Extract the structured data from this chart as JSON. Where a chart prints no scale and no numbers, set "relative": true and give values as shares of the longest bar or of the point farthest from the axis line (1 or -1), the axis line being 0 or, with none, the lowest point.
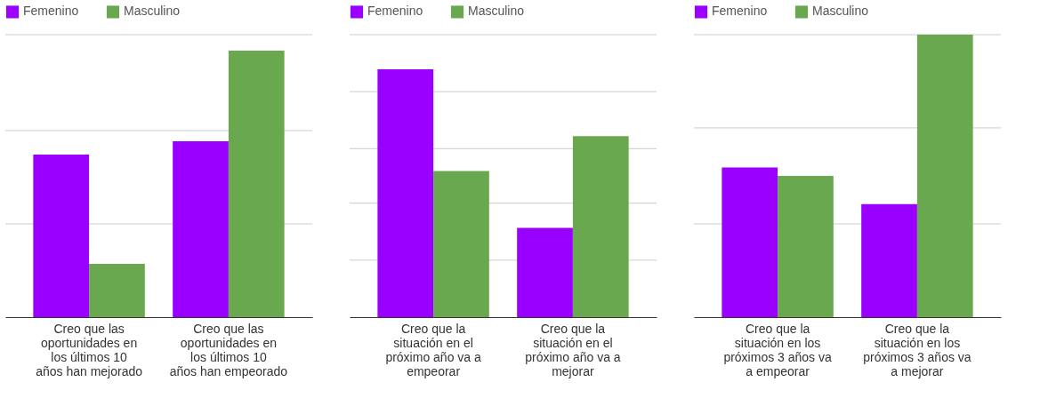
{
  "chart_data": [
    {
      "type": "bar",
      "relative": true,
      "legend": "top",
      "categories": [
        "Creo que las oportunidades en los últimos 10 años han mejorado",
        "Creo que las oportunidades en los últimos 10 años han empeorado"
      ],
      "series": [
        {
          "name": "Femenino",
          "color": "#9900ff",
          "values": [
            0.61,
            0.66
          ]
        },
        {
          "name": "Masculino",
          "color": "#6aa84f",
          "values": [
            0.2,
            1
          ]
        }
      ],
      "ref_lines": [
        {
          "axis": "y",
          "value": 0.35,
          "color": "#cccccc"
        },
        {
          "axis": "y",
          "value": 0.7,
          "color": "#cccccc"
        },
        {
          "axis": "y",
          "value": 1.06,
          "color": "#cccccc"
        }
      ]
    },
    {
      "type": "bar",
      "relative": true,
      "legend": "top",
      "categories": [
        "Creo que la situación en el próximo año va a empeorar",
        "Creo que la situación en el próximo año va a mejorar"
      ],
      "series": [
        {
          "name": "Femenino",
          "color": "#9900ff",
          "values": [
            1,
            0.36
          ]
        },
        {
          "name": "Masculino",
          "color": "#6aa84f",
          "values": [
            0.59,
            0.73
          ]
        }
      ],
      "ref_lines": [
        {
          "axis": "y",
          "value": 0.23,
          "color": "#cccccc"
        },
        {
          "axis": "y",
          "value": 0.46,
          "color": "#cccccc"
        },
        {
          "axis": "y",
          "value": 0.68,
          "color": "#cccccc"
        },
        {
          "axis": "y",
          "value": 0.91,
          "color": "#cccccc"
        },
        {
          "axis": "y",
          "value": 1.14,
          "color": "#cccccc"
        }
      ]
    },
    {
      "type": "bar",
      "relative": true,
      "legend": "top",
      "categories": [
        "Creo que la situación en los próximos 3 años va a empeorar",
        "Creo que la situación en los próximos 3 años va a mejorar"
      ],
      "series": [
        {
          "name": "Femenino",
          "color": "#9900ff",
          "values": [
            0.53,
            0.4
          ]
        },
        {
          "name": "Masculino",
          "color": "#6aa84f",
          "values": [
            0.5,
            1
          ]
        }
      ],
      "ref_lines": [
        {
          "axis": "y",
          "value": 0.33,
          "color": "#cccccc"
        },
        {
          "axis": "y",
          "value": 0.67,
          "color": "#cccccc"
        },
        {
          "axis": "y",
          "value": 1,
          "color": "#cccccc"
        }
      ]
    }
  ]
}
